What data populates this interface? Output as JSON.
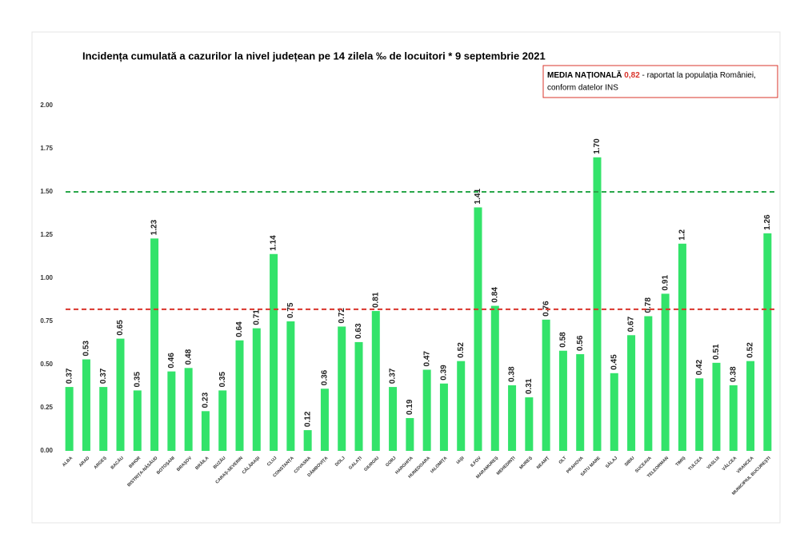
{
  "chart_data": {
    "type": "bar",
    "title": "Incidența cumulată a cazurilor la nivel județean pe 14 zilela ‰ de locuitori * 9 septembrie 2021",
    "annotation": {
      "title": "MEDIA NAȚIONALĂ",
      "value": "0,82",
      "text1": "- raportat la populația României,",
      "text2": "conform datelor INS"
    },
    "categories": [
      "ALBA",
      "ARAD",
      "ARGEȘ",
      "BACĂU",
      "BIHOR",
      "BISTRIȚA-NĂSĂUD",
      "BOTOȘANI",
      "BRAȘOV",
      "BRĂILA",
      "BUZĂU",
      "CARAȘ-SEVERIN",
      "CĂLĂRAȘI",
      "CLUJ",
      "CONSTANȚA",
      "COVASNA",
      "DÂMBOVIȚA",
      "DOLJ",
      "GALAȚI",
      "GIURGIU",
      "GORJ",
      "HARGHITA",
      "HUNEDOARA",
      "IALOMIȚA",
      "IAȘI",
      "ILFOV",
      "MARAMUREȘ",
      "MEHEDINȚI",
      "MUREȘ",
      "NEAMȚ",
      "OLT",
      "PRAHOVA",
      "SATU MARE",
      "SĂLAJ",
      "SIBIU",
      "SUCEAVA",
      "TELEORMAN",
      "TIMIȘ",
      "TULCEA",
      "VASLUI",
      "VÂLCEA",
      "VRANCEA",
      "MUNICIPIUL BUCUREȘTI"
    ],
    "values": [
      0.37,
      0.53,
      0.37,
      0.65,
      0.35,
      1.23,
      0.46,
      0.48,
      0.23,
      0.35,
      0.64,
      0.71,
      1.14,
      0.75,
      0.12,
      0.36,
      0.72,
      0.63,
      0.81,
      0.37,
      0.19,
      0.47,
      0.39,
      0.52,
      1.41,
      0.84,
      0.38,
      0.31,
      0.76,
      0.58,
      0.56,
      1.7,
      0.45,
      0.67,
      0.78,
      0.91,
      1.2,
      0.42,
      0.51,
      0.38,
      0.52,
      1.26
    ],
    "value_labels": [
      "0.37",
      "0.53",
      "0.37",
      "0.65",
      "0.35",
      "1.23",
      "0.46",
      "0.48",
      "0.23",
      "0.35",
      "0.64",
      "0.71",
      "1.14",
      "0.75",
      "0.12",
      "0.36",
      "0.72",
      "0.63",
      "0.81",
      "0.37",
      "0.19",
      "0.47",
      "0.39",
      "0.52",
      "1.41",
      "0.84",
      "0.38",
      "0.31",
      "0.76",
      "0.58",
      "0.56",
      "1.70",
      "0.45",
      "0.67",
      "0.78",
      "0.91",
      "1.2",
      "0.42",
      "0.51",
      "0.38",
      "0.52",
      "1.26"
    ],
    "color": "#33e36a",
    "ylim": [
      0,
      2
    ],
    "yticks": [
      {
        "value": 0,
        "label": "0.00"
      },
      {
        "value": 0.25,
        "label": "0.25"
      },
      {
        "value": 0.5,
        "label": "0.50"
      },
      {
        "value": 0.75,
        "label": "0.75"
      },
      {
        "value": 1,
        "label": "1.00"
      },
      {
        "value": 1.25,
        "label": "1.25"
      },
      {
        "value": 1.5,
        "label": "1.50"
      },
      {
        "value": 1.75,
        "label": "1.75"
      },
      {
        "value": 2,
        "label": "2.00"
      }
    ],
    "reference_lines": [
      {
        "value": 1.5,
        "color": "#2aa84a"
      },
      {
        "value": 0.82,
        "color": "#d9342b"
      }
    ],
    "grid": false
  }
}
